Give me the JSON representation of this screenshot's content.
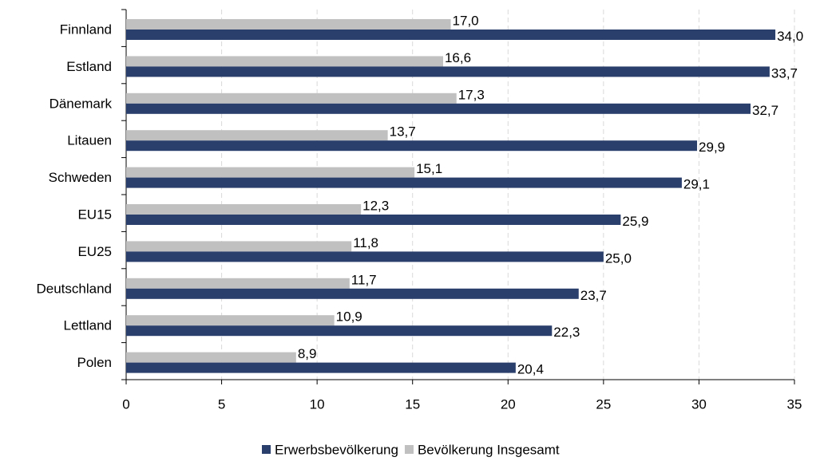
{
  "chart_data": {
    "type": "bar",
    "orientation": "horizontal",
    "categories": [
      "Finnland",
      "Estland",
      "Dänemark",
      "Litauen",
      "Schweden",
      "EU15",
      "EU25",
      "Deutschland",
      "Lettland",
      "Polen"
    ],
    "series": [
      {
        "name": "Erwerbsbevölkerung",
        "color": "#2b3f6c",
        "values": [
          34.0,
          33.7,
          32.7,
          29.9,
          29.1,
          25.9,
          25.0,
          23.7,
          22.3,
          20.4
        ],
        "value_labels": [
          "34,0",
          "33,7",
          "32,7",
          "29,9",
          "29,1",
          "25,9",
          "25,0",
          "23,7",
          "22,3",
          "20,4"
        ]
      },
      {
        "name": "Bevölkerung Insgesamt",
        "color": "#c0c0c0",
        "values": [
          17.0,
          16.6,
          17.3,
          13.7,
          15.1,
          12.3,
          11.8,
          11.7,
          10.9,
          8.9
        ],
        "value_labels": [
          "17,0",
          "16,6",
          "17,3",
          "13,7",
          "15,1",
          "12,3",
          "11,8",
          "11,7",
          "10,9",
          "8,9"
        ]
      }
    ],
    "xlim": [
      0,
      35
    ],
    "xticks": [
      0,
      5,
      10,
      15,
      20,
      25,
      30,
      35
    ],
    "grid": true,
    "legend": "bottom"
  }
}
